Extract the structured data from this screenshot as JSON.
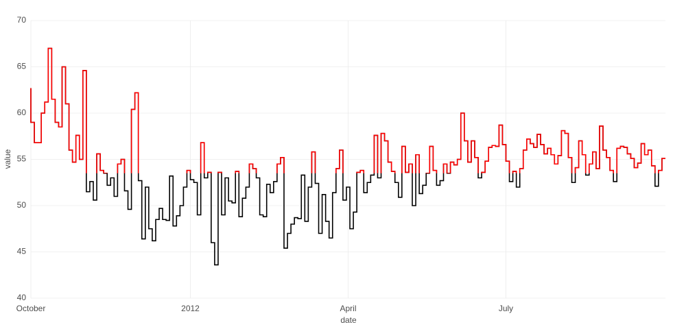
{
  "chart_data": {
    "type": "step",
    "x_label": "date",
    "y_label": "value",
    "x": [
      0,
      2,
      4,
      6,
      8,
      10,
      12,
      14,
      16,
      18,
      20,
      22,
      24,
      26,
      28,
      30,
      32,
      34,
      36,
      38,
      40,
      42,
      44,
      46,
      48,
      50,
      52,
      54,
      56,
      58,
      60,
      62,
      64,
      66,
      68,
      70,
      72,
      74,
      76,
      78,
      80,
      82,
      84,
      86,
      88,
      90,
      92,
      94,
      96,
      98,
      100,
      102,
      104,
      106,
      108,
      110,
      112,
      114,
      116,
      118,
      120,
      122,
      124,
      126,
      128,
      130,
      132,
      134,
      136,
      138,
      140,
      142,
      144,
      146,
      148,
      150,
      152,
      154,
      156,
      158,
      160,
      162,
      164,
      166,
      168,
      170,
      172,
      174,
      176,
      178,
      180,
      182,
      184,
      186,
      188,
      190,
      192,
      194,
      196,
      198,
      200,
      202,
      204,
      206,
      208,
      210,
      212,
      214,
      216,
      218,
      220,
      222,
      224,
      226,
      228,
      230,
      232,
      234,
      236,
      238,
      240,
      242,
      244,
      246,
      248,
      250,
      252,
      254,
      256,
      258,
      260,
      262,
      264,
      266,
      268,
      270,
      272,
      274,
      276,
      278,
      280,
      282,
      284,
      286,
      288,
      290,
      292,
      294,
      296,
      298,
      300,
      302,
      304,
      306,
      308,
      310,
      312,
      314,
      316,
      318,
      320,
      322,
      324,
      326,
      328,
      330,
      332,
      334,
      336,
      338,
      340,
      342,
      344,
      346,
      348,
      350,
      352,
      354,
      356,
      358,
      360,
      362,
      364,
      366
    ],
    "values": [
      62.7,
      59,
      56.8,
      56.8,
      60,
      61.2,
      67,
      61.5,
      59,
      58.5,
      65,
      61,
      56,
      54.7,
      57.6,
      55,
      64.6,
      51.5,
      52.6,
      50.6,
      55.6,
      53.8,
      53.5,
      52.2,
      53,
      51,
      54.5,
      55,
      51.6,
      49.6,
      60.4,
      62.2,
      52.7,
      46.4,
      52,
      47.5,
      46.2,
      48.5,
      49.7,
      48.5,
      48.4,
      53.2,
      47.8,
      48.9,
      50,
      52,
      53.8,
      52.8,
      52.5,
      49,
      56.8,
      53,
      53.6,
      46,
      43.6,
      53.6,
      49,
      53,
      50.5,
      50.3,
      53.7,
      48.8,
      50.8,
      52,
      54.5,
      54,
      53,
      49,
      48.8,
      52.3,
      51.4,
      52.6,
      54.5,
      55.2,
      45.4,
      47,
      48,
      48.7,
      48.6,
      53.3,
      48.3,
      52,
      55.8,
      52.4,
      47,
      51.2,
      48.3,
      46.5,
      51.4,
      54,
      56,
      50.6,
      52,
      47.5,
      49.3,
      53.6,
      53.8,
      51.4,
      52.5,
      53.3,
      57.6,
      53,
      57.8,
      57,
      54.7,
      53.7,
      52.5,
      50.9,
      56.4,
      53.6,
      54.5,
      50,
      55.5,
      51.3,
      52.2,
      53.5,
      56.4,
      53.8,
      52.2,
      52.7,
      54.5,
      53.5,
      54.7,
      54.4,
      55,
      60,
      57,
      54.7,
      57,
      55.2,
      53,
      53.6,
      54.8,
      56.3,
      56.5,
      56.4,
      58.7,
      56.6,
      54.8,
      52.6,
      53.7,
      52,
      54,
      56,
      57.2,
      56.7,
      56.3,
      57.7,
      56.6,
      55.6,
      56.2,
      55.5,
      54.5,
      55.4,
      58.1,
      57.8,
      55.2,
      52.5,
      54.1,
      57,
      55.5,
      53.3,
      54.5,
      55.8,
      54,
      58.6,
      56,
      55.2,
      53.8,
      52.6,
      56.2,
      56.4,
      56.3,
      55.6,
      55.1,
      54.1,
      54.6,
      56.7,
      55.5,
      56,
      54.3,
      52.1,
      53.8,
      55.1
    ],
    "color": "#000000",
    "highlight_color": "#ff0000",
    "threshold": 53.5,
    "xlim": [
      0,
      366
    ],
    "xticks": [
      {
        "value": 0,
        "label": "October"
      },
      {
        "value": 92,
        "label": "2012"
      },
      {
        "value": 183,
        "label": "April"
      },
      {
        "value": 274,
        "label": "July"
      }
    ],
    "ylim": [
      40,
      70
    ],
    "yticks": [
      40,
      45,
      50,
      55,
      60,
      65,
      70
    ],
    "grid": true
  }
}
